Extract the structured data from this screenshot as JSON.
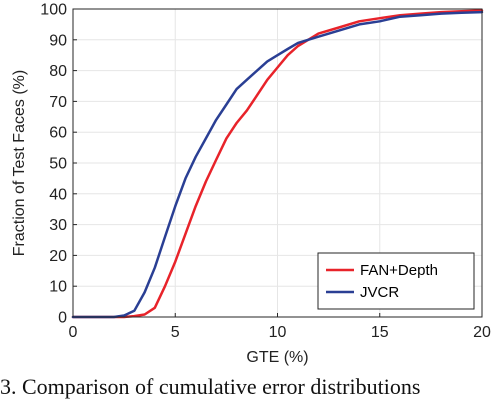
{
  "chart_data": {
    "type": "line",
    "xlabel": "GTE (%)",
    "ylabel": "Fraction of Test Faces (%)",
    "xlim": [
      0,
      20
    ],
    "ylim": [
      0,
      100
    ],
    "xticks": [
      0,
      5,
      10,
      15,
      20
    ],
    "yticks": [
      0,
      10,
      20,
      30,
      40,
      50,
      60,
      70,
      80,
      90,
      100
    ],
    "grid": true,
    "legend_position": "bottom-right",
    "series": [
      {
        "name": "FAN+Depth",
        "color": "#e8232a",
        "x": [
          0,
          2.5,
          3.0,
          3.5,
          4.0,
          4.5,
          5.0,
          5.5,
          6.0,
          6.5,
          7.0,
          7.5,
          8.0,
          8.5,
          9.0,
          9.5,
          10.0,
          10.5,
          11.0,
          11.5,
          12.0,
          13.0,
          14.0,
          15.0,
          16.0,
          17.0,
          18.0,
          19.0,
          20.0
        ],
        "y": [
          0,
          0,
          0.3,
          0.8,
          3,
          10,
          18,
          27,
          36,
          44,
          51,
          58,
          63,
          67,
          72,
          77,
          81,
          85,
          88,
          90,
          92,
          94,
          96,
          97,
          98,
          98.5,
          99,
          99.3,
          99.5
        ]
      },
      {
        "name": "JVCR",
        "color": "#2a3f94",
        "x": [
          0,
          2.0,
          2.5,
          3.0,
          3.5,
          4.0,
          4.5,
          5.0,
          5.5,
          6.0,
          6.5,
          7.0,
          7.5,
          8.0,
          8.5,
          9.0,
          9.5,
          10.0,
          10.5,
          11.0,
          11.5,
          12.0,
          13.0,
          14.0,
          15.0,
          16.0,
          17.0,
          18.0,
          19.0,
          20.0
        ],
        "y": [
          0,
          0,
          0.5,
          2,
          8,
          16,
          26,
          36,
          45,
          52,
          58,
          64,
          69,
          74,
          77,
          80,
          83,
          85,
          87,
          89,
          90,
          91,
          93,
          95,
          96,
          97.5,
          98,
          98.5,
          98.8,
          99
        ]
      }
    ]
  },
  "caption": "3. Comparison of cumulative error distributions"
}
